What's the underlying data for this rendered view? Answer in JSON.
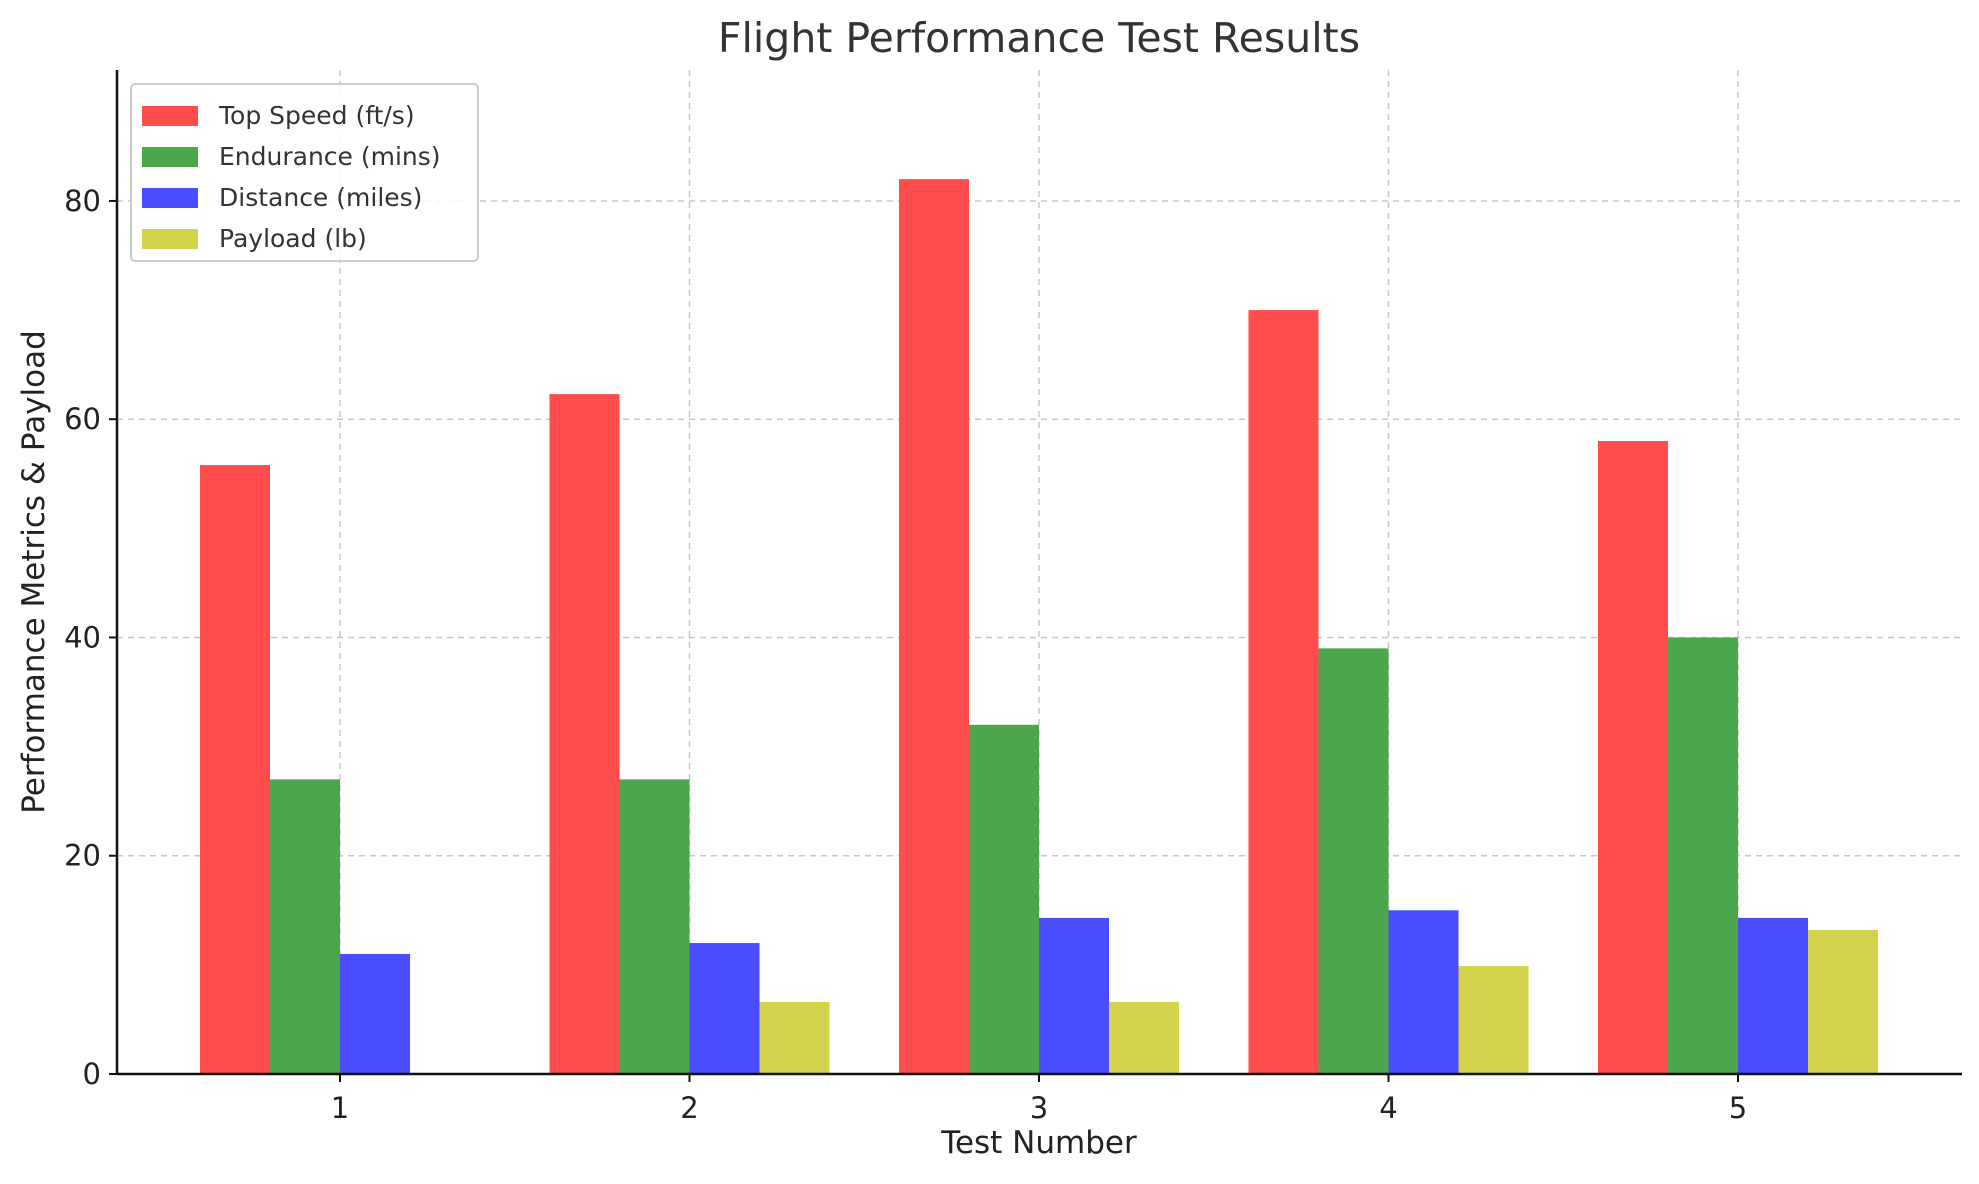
{
  "chart_data": {
    "type": "bar",
    "title": "Flight Performance Test Results",
    "xlabel": "Test Number",
    "ylabel": "Performance Metrics & Payload",
    "categories": [
      "1",
      "2",
      "3",
      "4",
      "5"
    ],
    "series": [
      {
        "name": "Top Speed (ft/s)",
        "color": "#ff4c4c",
        "values": [
          55.8,
          62.3,
          82.0,
          70.0,
          58.0
        ]
      },
      {
        "name": "Endurance (mins)",
        "color": "#4ca64c",
        "values": [
          27.0,
          27.0,
          32.0,
          39.0,
          40.0
        ]
      },
      {
        "name": "Distance (miles)",
        "color": "#4c4cff",
        "values": [
          11.0,
          12.0,
          14.3,
          15.0,
          14.3
        ]
      },
      {
        "name": "Payload (lb)",
        "color": "#d4d44c",
        "values": [
          0,
          6.6,
          6.6,
          9.9,
          13.2
        ]
      }
    ],
    "ylim": [
      0,
      92
    ],
    "yticks": [
      0,
      20,
      40,
      60,
      80
    ],
    "grid": true,
    "legend_position": "top-left"
  }
}
